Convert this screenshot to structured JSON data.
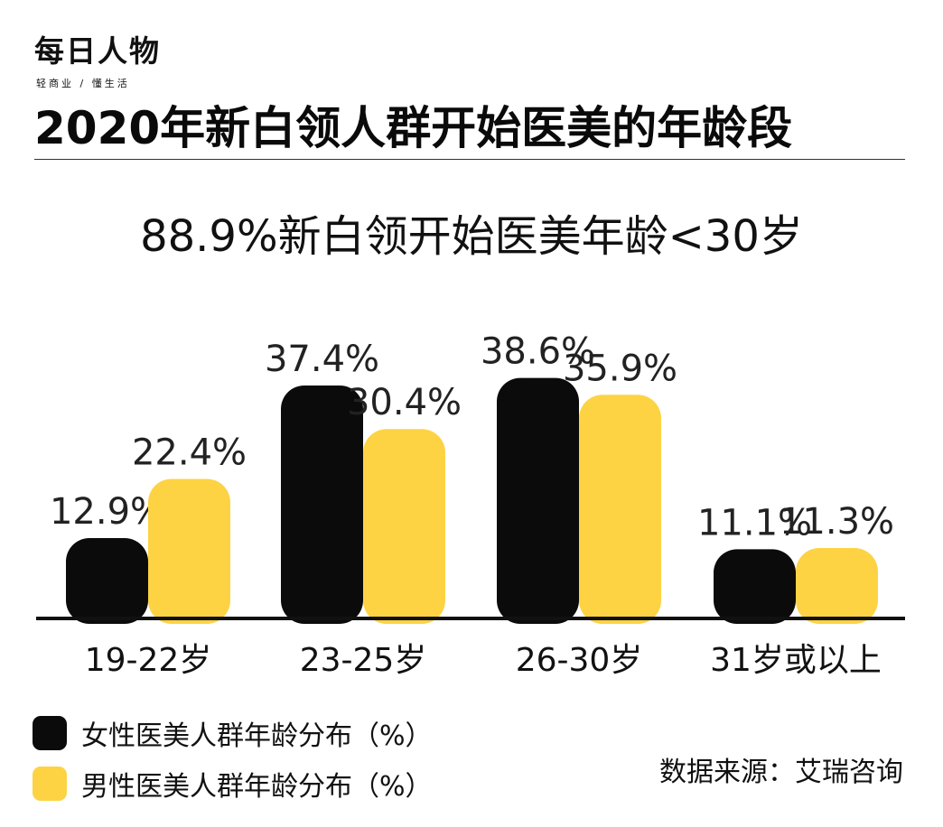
{
  "brand": {
    "logo": "每日人物",
    "tagline": "轻商业 / 懂生活"
  },
  "title": "2020年新白领人群开始医美的年龄段",
  "headline": "88.9%新白领开始医美年龄<30岁",
  "colors": {
    "female": "#0b0b0b",
    "male": "#fdd344",
    "axis": "#111111",
    "text": "#222222"
  },
  "chart_data": {
    "type": "bar",
    "categories": [
      "19-22岁",
      "23-25岁",
      "26-30岁",
      "31岁或以上"
    ],
    "series": [
      {
        "name": "女性医美人群年龄分布（%）",
        "values": [
          12.9,
          37.4,
          38.6,
          11.1
        ],
        "labels": [
          "12.9%",
          "37.4%",
          "38.6%",
          "11.1%"
        ],
        "color": "#0b0b0b"
      },
      {
        "name": "男性医美人群年龄分布（%）",
        "values": [
          22.4,
          30.4,
          35.9,
          11.3
        ],
        "labels": [
          "22.4%",
          "30.4%",
          "35.9%",
          "11.3%"
        ],
        "color": "#fdd344"
      }
    ],
    "ylim": [
      0,
      40
    ],
    "grid": false,
    "legend_position": "bottom-left"
  },
  "legend": [
    {
      "label": "女性医美人群年龄分布（%）",
      "icon": "black-rounded-square"
    },
    {
      "label": "男性医美人群年龄分布（%）",
      "icon": "yellow-rounded-square"
    }
  ],
  "source": "数据来源：艾瑞咨询"
}
